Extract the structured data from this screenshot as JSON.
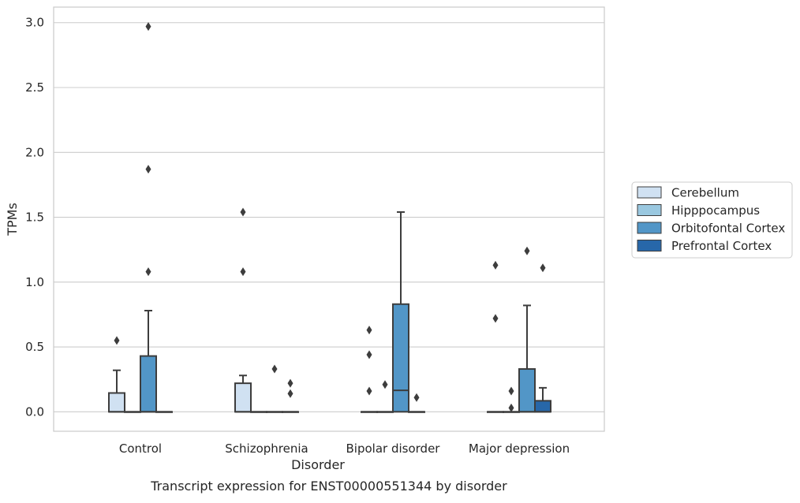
{
  "chart_data": {
    "type": "boxplot",
    "title": "",
    "caption": "Transcript expression for ENST00000551344 by disorder",
    "xlabel": "Disorder",
    "ylabel": "TPMs",
    "ylim": [
      -0.15,
      3.12
    ],
    "yticks": [
      0.0,
      0.5,
      1.0,
      1.5,
      2.0,
      2.5,
      3.0
    ],
    "ytick_labels": [
      "0.0",
      "0.5",
      "1.0",
      "1.5",
      "2.0",
      "2.5",
      "3.0"
    ],
    "grid": true,
    "legend_position": "right",
    "categories": [
      "Control",
      "Schizophrenia",
      "Bipolar disorder",
      "Major depression"
    ],
    "series": [
      {
        "name": "Cerebellum",
        "color": "#d0e1f2",
        "boxes": [
          {
            "q1": 0.0,
            "median": 0.0,
            "q3": 0.145,
            "whisker_low": 0.0,
            "whisker_high": 0.32,
            "outliers": [
              0.55
            ]
          },
          {
            "q1": 0.0,
            "median": 0.0,
            "q3": 0.22,
            "whisker_low": 0.0,
            "whisker_high": 0.28,
            "outliers": [
              1.08,
              1.54
            ]
          },
          {
            "q1": 0.0,
            "median": 0.0,
            "q3": 0.0,
            "whisker_low": 0.0,
            "whisker_high": 0.0,
            "outliers": [
              0.16,
              0.44,
              0.63
            ]
          },
          {
            "q1": 0.0,
            "median": 0.0,
            "q3": 0.0,
            "whisker_low": 0.0,
            "whisker_high": 0.0,
            "outliers": [
              0.72,
              1.13
            ]
          }
        ]
      },
      {
        "name": "Hipppocampus",
        "color": "#9ac8e0",
        "boxes": [
          {
            "q1": 0.0,
            "median": 0.0,
            "q3": 0.0,
            "whisker_low": 0.0,
            "whisker_high": 0.0,
            "outliers": []
          },
          {
            "q1": 0.0,
            "median": 0.0,
            "q3": 0.0,
            "whisker_low": 0.0,
            "whisker_high": 0.0,
            "outliers": []
          },
          {
            "q1": 0.0,
            "median": 0.0,
            "q3": 0.0,
            "whisker_low": 0.0,
            "whisker_high": 0.0,
            "outliers": [
              0.21
            ]
          },
          {
            "q1": 0.0,
            "median": 0.0,
            "q3": 0.0,
            "whisker_low": 0.0,
            "whisker_high": 0.0,
            "outliers": [
              0.03,
              0.16
            ]
          }
        ]
      },
      {
        "name": "Orbitofontal Cortex",
        "color": "#5296c7",
        "boxes": [
          {
            "q1": 0.0,
            "median": 0.0,
            "q3": 0.43,
            "whisker_low": 0.0,
            "whisker_high": 0.78,
            "outliers": [
              1.08,
              1.87,
              2.97
            ]
          },
          {
            "q1": 0.0,
            "median": 0.0,
            "q3": 0.0,
            "whisker_low": 0.0,
            "whisker_high": 0.0,
            "outliers": [
              0.33
            ]
          },
          {
            "q1": 0.0,
            "median": 0.165,
            "q3": 0.83,
            "whisker_low": 0.0,
            "whisker_high": 1.54,
            "outliers": []
          },
          {
            "q1": 0.0,
            "median": 0.0,
            "q3": 0.33,
            "whisker_low": 0.0,
            "whisker_high": 0.82,
            "outliers": [
              1.24
            ]
          }
        ]
      },
      {
        "name": "Prefrontal Cortex",
        "color": "#2767a9",
        "boxes": [
          {
            "q1": 0.0,
            "median": 0.0,
            "q3": 0.0,
            "whisker_low": 0.0,
            "whisker_high": 0.0,
            "outliers": []
          },
          {
            "q1": 0.0,
            "median": 0.0,
            "q3": 0.0,
            "whisker_low": 0.0,
            "whisker_high": 0.0,
            "outliers": [
              0.14,
              0.22
            ]
          },
          {
            "q1": 0.0,
            "median": 0.0,
            "q3": 0.0,
            "whisker_low": 0.0,
            "whisker_high": 0.0,
            "outliers": [
              0.11
            ]
          },
          {
            "q1": 0.0,
            "median": 0.0,
            "q3": 0.085,
            "whisker_low": 0.0,
            "whisker_high": 0.185,
            "outliers": [
              1.11
            ]
          }
        ]
      }
    ]
  }
}
